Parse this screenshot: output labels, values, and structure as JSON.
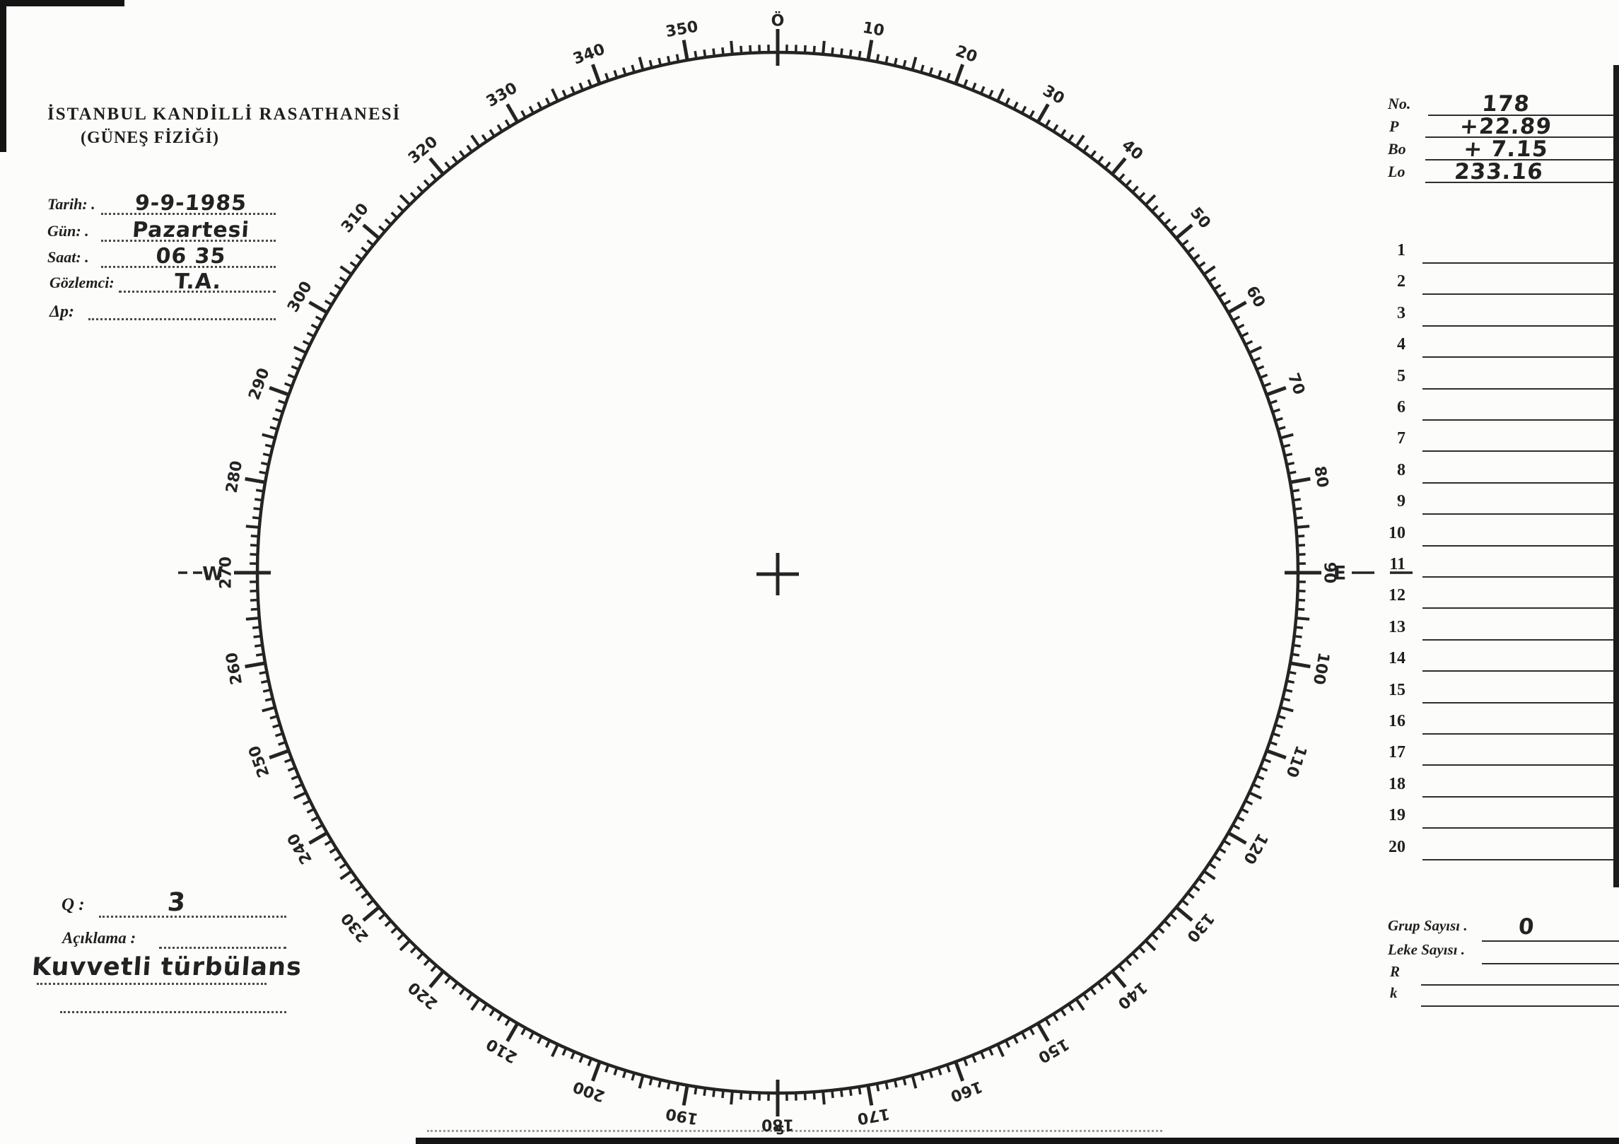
{
  "header": {
    "line1": "İSTANBUL KANDİLLİ RASATHANESİ",
    "line2": "(GÜNEŞ FİZİĞİ)"
  },
  "observation": {
    "fields": [
      {
        "label": "Tarih: .",
        "value": "9-9-1985"
      },
      {
        "label": "Gün: .",
        "value": "Pazartesi"
      },
      {
        "label": "Saat: .",
        "value": "06 35"
      },
      {
        "label": "Gözlemci:",
        "value": "T.A."
      },
      {
        "label": "Δp:",
        "value": ""
      }
    ]
  },
  "quality": {
    "q_label": "Q :",
    "q_value": "3",
    "aciklama_label": "Açıklama :",
    "note": "Kuvvetli türbülans"
  },
  "ephemeris": {
    "rows": [
      {
        "label": "No.",
        "value": "178"
      },
      {
        "label": "P",
        "value": "+22.89"
      },
      {
        "label": "Bo",
        "value": "+ 7.15"
      },
      {
        "label": "Lo",
        "value": "233.16"
      }
    ]
  },
  "group_list": {
    "rows": [
      "1",
      "2",
      "3",
      "4",
      "5",
      "6",
      "7",
      "8",
      "9",
      "10",
      "11",
      "12",
      "13",
      "14",
      "15",
      "16",
      "17",
      "18",
      "19",
      "20"
    ]
  },
  "counts": {
    "rows": [
      {
        "label": "Grup Sayısı .",
        "value": "0"
      },
      {
        "label": "Leke Sayısı .",
        "value": ""
      },
      {
        "label": "R",
        "value": ""
      },
      {
        "label": "k",
        "value": ""
      }
    ]
  },
  "dial": {
    "labels": [
      {
        "deg": 0,
        "text": "Ö"
      },
      {
        "deg": 10,
        "text": "10"
      },
      {
        "deg": 20,
        "text": "20"
      },
      {
        "deg": 30,
        "text": "30"
      },
      {
        "deg": 40,
        "text": "40"
      },
      {
        "deg": 50,
        "text": "50"
      },
      {
        "deg": 60,
        "text": "60"
      },
      {
        "deg": 70,
        "text": "70"
      },
      {
        "deg": 80,
        "text": "80"
      },
      {
        "deg": 90,
        "text": "90"
      },
      {
        "deg": 100,
        "text": "100"
      },
      {
        "deg": 110,
        "text": "110"
      },
      {
        "deg": 120,
        "text": "120"
      },
      {
        "deg": 130,
        "text": "130"
      },
      {
        "deg": 140,
        "text": "140"
      },
      {
        "deg": 150,
        "text": "150"
      },
      {
        "deg": 160,
        "text": "160"
      },
      {
        "deg": 170,
        "text": "170"
      },
      {
        "deg": 180,
        "text": "180"
      },
      {
        "deg": 190,
        "text": "190"
      },
      {
        "deg": 200,
        "text": "200"
      },
      {
        "deg": 210,
        "text": "210"
      },
      {
        "deg": 220,
        "text": "220"
      },
      {
        "deg": 230,
        "text": "230"
      },
      {
        "deg": 240,
        "text": "240"
      },
      {
        "deg": 250,
        "text": "250"
      },
      {
        "deg": 260,
        "text": "260"
      },
      {
        "deg": 270,
        "text": "270"
      },
      {
        "deg": 280,
        "text": "280"
      },
      {
        "deg": 290,
        "text": "290"
      },
      {
        "deg": 300,
        "text": "300"
      },
      {
        "deg": 310,
        "text": "310"
      },
      {
        "deg": 320,
        "text": "320"
      },
      {
        "deg": 330,
        "text": "330"
      },
      {
        "deg": 340,
        "text": "340"
      },
      {
        "deg": 350,
        "text": "350"
      }
    ],
    "cardinals": [
      {
        "deg": 90,
        "text": "E"
      },
      {
        "deg": 180,
        "text": "S"
      },
      {
        "deg": 270,
        "text": "W"
      }
    ]
  },
  "colors": {
    "ink": "#242424",
    "paper": "#fcfcfa",
    "scan_edge": "#141414"
  }
}
